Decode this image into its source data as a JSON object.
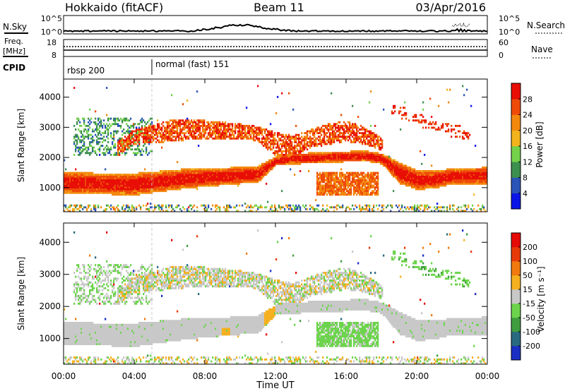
{
  "header": {
    "station": "Hokkaido (fitACF)",
    "beam": "Beam 11",
    "date": "03/Apr/2016"
  },
  "strip_labels": {
    "nsky": "N.Sky",
    "nsky_ticks": [
      "10^5",
      "10^0"
    ],
    "nsearch": "N.Search",
    "nsearch_ticks": [
      "10^5",
      "10^0"
    ],
    "freq_line1": "Freq.",
    "freq_line2": "[MHz]",
    "freq_ticks": [
      "18",
      "8"
    ],
    "nave": "Nave",
    "nave_ticks": [
      "60",
      "0"
    ],
    "cpid": "CPID",
    "cpid_segments": [
      {
        "label": "rbsp 200",
        "start_hour": 0
      },
      {
        "label": "normal (fast) 151",
        "start_hour": 5
      }
    ]
  },
  "chart_data": [
    {
      "type": "heatmap",
      "name": "power",
      "ylabel": "Slant Range [km]",
      "xlabel": "",
      "ylim": [
        200,
        4600
      ],
      "y_ticks": [
        "1000",
        "2000",
        "3000",
        "4000"
      ],
      "xlim": [
        0,
        24
      ],
      "colorbar": {
        "label": "Power [dB]",
        "ticks": [
          "4",
          "8",
          "12",
          "16",
          "20",
          "24",
          "28"
        ],
        "colors": [
          "#0a16e6",
          "#2a54b8",
          "#3d8f4e",
          "#73d24a",
          "#f2b31c",
          "#f3880e",
          "#ee4a08",
          "#e80e06"
        ]
      },
      "bands": [
        {
          "desc": "lower F-region",
          "x": [
            0,
            2,
            4,
            5,
            7,
            10,
            11,
            12,
            13,
            15,
            17,
            18,
            19,
            20,
            21,
            22,
            24
          ],
          "y_lo": [
            800,
            750,
            720,
            800,
            950,
            1100,
            1150,
            1700,
            1750,
            1800,
            1850,
            1750,
            1100,
            900,
            950,
            1100,
            1100
          ],
          "y_hi": [
            1500,
            1450,
            1450,
            1500,
            1600,
            1650,
            1700,
            2000,
            2100,
            2150,
            2200,
            2100,
            1800,
            1550,
            1550,
            1600,
            1650
          ]
        },
        {
          "desc": "upper band",
          "x": [
            3,
            4,
            6,
            8,
            10,
            11,
            12,
            13,
            14,
            15,
            16,
            17,
            18
          ],
          "y_lo": [
            2000,
            2400,
            2500,
            2600,
            2600,
            2500,
            2000,
            2000,
            2300,
            2400,
            2500,
            2400,
            2200
          ],
          "y_hi": [
            2500,
            2900,
            3200,
            3200,
            3100,
            3000,
            2800,
            2700,
            2900,
            3100,
            3200,
            3000,
            2600
          ]
        }
      ]
    },
    {
      "type": "heatmap",
      "name": "velocity",
      "ylabel": "Slant Range [km]",
      "xlabel": "Time UT",
      "ylim": [
        200,
        4600
      ],
      "y_ticks": [
        "1000",
        "2000",
        "3000",
        "4000"
      ],
      "x_ticks": [
        "00:00",
        "04:00",
        "08:00",
        "12:00",
        "16:00",
        "20:00",
        "00:00"
      ],
      "colorbar": {
        "label": "Velocity [m s⁻¹]",
        "ticks": [
          "200",
          "100",
          "50",
          "15",
          "-15",
          "-50",
          "-100",
          "-200"
        ],
        "colors": [
          "#1b2fc4",
          "#2a6a80",
          "#3f9d3f",
          "#6cd44c",
          "#c8c8c8",
          "#f5b020",
          "#f07a10",
          "#e83a08",
          "#e50a06"
        ]
      }
    }
  ]
}
